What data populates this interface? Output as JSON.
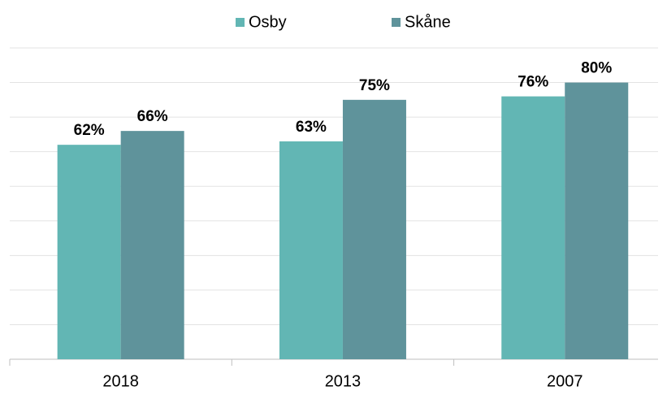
{
  "chart_data": {
    "type": "bar",
    "categories": [
      "2018",
      "2013",
      "2007"
    ],
    "series": [
      {
        "name": "Osby",
        "color": "#62b6b4",
        "values": [
          62,
          63,
          76
        ],
        "value_labels": [
          "62%",
          "63%",
          "76%"
        ]
      },
      {
        "name": "Skåne",
        "color": "#5f939b",
        "values": [
          66,
          75,
          80
        ],
        "value_labels": [
          "66%",
          "75%",
          "80%"
        ]
      }
    ],
    "ylim": [
      0,
      90
    ],
    "yticks": [
      0,
      10,
      20,
      30,
      40,
      50,
      60,
      70,
      80,
      90
    ],
    "grid": true,
    "legend": "top"
  }
}
